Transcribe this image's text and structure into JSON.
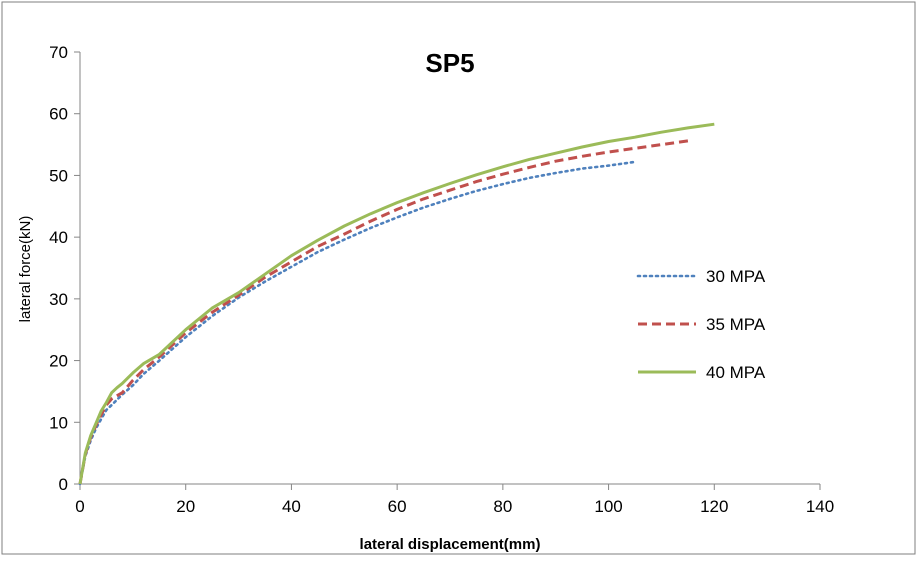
{
  "chart_data": {
    "type": "line",
    "title": "SP5",
    "xlabel": "lateral displacement(mm)",
    "ylabel": "lateral force(kN)",
    "xlim": [
      0,
      140
    ],
    "ylim": [
      0,
      70
    ],
    "xticks": [
      0,
      20,
      40,
      60,
      80,
      100,
      120,
      140
    ],
    "yticks": [
      0,
      10,
      20,
      30,
      40,
      50,
      60,
      70
    ],
    "grid": false,
    "legend_position": "right",
    "series": [
      {
        "name": "30 MPA",
        "color": "#4f81bd",
        "style": "dotted",
        "x": [
          0,
          1,
          2,
          3,
          4,
          5,
          6,
          8,
          10,
          12,
          15,
          20,
          25,
          30,
          35,
          40,
          45,
          50,
          55,
          60,
          65,
          70,
          75,
          80,
          85,
          90,
          95,
          100,
          105
        ],
        "y": [
          0,
          4.5,
          7,
          9,
          10.5,
          12,
          12.8,
          14.5,
          16,
          17.8,
          20,
          23.8,
          27.2,
          30.2,
          32.8,
          35.2,
          37.6,
          39.6,
          41.5,
          43.2,
          44.8,
          46.2,
          47.5,
          48.6,
          49.6,
          50.4,
          51.1,
          51.6,
          52.2
        ]
      },
      {
        "name": "35 MPA",
        "color": "#c0504d",
        "style": "dashed",
        "x": [
          0,
          1,
          2,
          3,
          4,
          5,
          6,
          8,
          10,
          12,
          15,
          20,
          25,
          30,
          35,
          40,
          45,
          50,
          55,
          60,
          65,
          70,
          75,
          80,
          85,
          90,
          95,
          100,
          105,
          110,
          115
        ],
        "y": [
          0,
          4.8,
          7.5,
          9.5,
          11.2,
          12.8,
          13.8,
          14.8,
          16.8,
          18.5,
          20.6,
          24.5,
          27.8,
          30.6,
          33.5,
          36,
          38.5,
          40.5,
          42.6,
          44.5,
          46.2,
          47.6,
          49,
          50.2,
          51.3,
          52.3,
          53.1,
          53.8,
          54.4,
          55,
          55.6
        ]
      },
      {
        "name": "40 MPA",
        "color": "#9bbb59",
        "style": "solid",
        "x": [
          0,
          1,
          2,
          3,
          4,
          5,
          6,
          7,
          8,
          10,
          12,
          15,
          20,
          25,
          30,
          35,
          40,
          45,
          50,
          55,
          60,
          65,
          70,
          75,
          80,
          85,
          90,
          95,
          100,
          105,
          110,
          115,
          120
        ],
        "y": [
          0,
          5,
          7.8,
          9.8,
          11.8,
          13.2,
          14.8,
          15.6,
          16.3,
          18,
          19.5,
          21,
          25,
          28.5,
          31,
          34,
          37,
          39.5,
          41.8,
          43.8,
          45.6,
          47.2,
          48.7,
          50.1,
          51.4,
          52.6,
          53.6,
          54.6,
          55.5,
          56.2,
          57,
          57.7,
          58.3
        ]
      }
    ]
  }
}
